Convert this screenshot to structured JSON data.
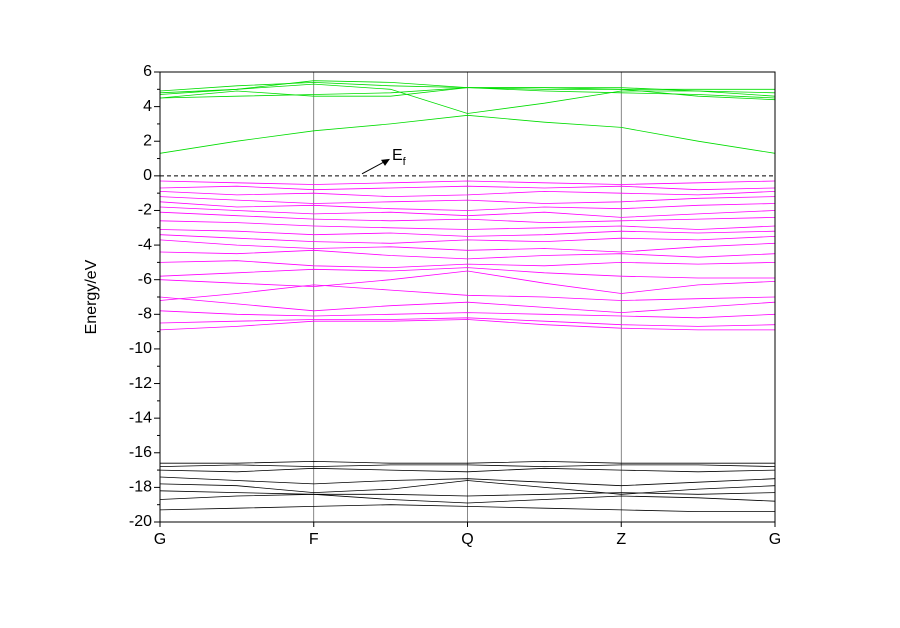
{
  "chart_data": {
    "type": "line",
    "ylabel": "Energy/eV",
    "x": [
      0,
      0.5,
      1,
      1.5,
      2,
      2.5,
      3,
      3.5,
      4
    ],
    "xlim": [
      0,
      4
    ],
    "xticks": [
      {
        "value": 0,
        "label": "G"
      },
      {
        "value": 1,
        "label": "F"
      },
      {
        "value": 2,
        "label": "Q"
      },
      {
        "value": 3,
        "label": "Z"
      },
      {
        "value": 4,
        "label": "G"
      }
    ],
    "ylim": [
      -20,
      6
    ],
    "yticks": [
      -20,
      -18,
      -16,
      -14,
      -12,
      -10,
      -8,
      -6,
      -4,
      -2,
      0,
      2,
      4,
      6
    ],
    "grid": true,
    "fermi_level": 0,
    "annotation": {
      "text": "E",
      "subscript": "f"
    },
    "series": [
      {
        "color": "#00dd00",
        "values": [
          1.3,
          2.0,
          2.6,
          3.0,
          3.5,
          3.1,
          2.8,
          2.0,
          1.3
        ]
      },
      {
        "color": "#00dd00",
        "values": [
          4.5,
          4.6,
          4.7,
          4.8,
          5.1,
          4.9,
          4.8,
          4.7,
          4.5
        ]
      },
      {
        "color": "#00dd00",
        "values": [
          4.7,
          5.0,
          5.3,
          5.0,
          3.6,
          4.2,
          4.9,
          4.9,
          4.8
        ]
      },
      {
        "color": "#00dd00",
        "values": [
          4.8,
          5.0,
          5.5,
          5.4,
          5.1,
          5.1,
          5.0,
          4.6,
          4.4
        ]
      },
      {
        "color": "#00dd00",
        "values": [
          4.9,
          5.2,
          5.4,
          5.2,
          5.1,
          5.0,
          5.0,
          5.0,
          5.0
        ]
      },
      {
        "color": "#00dd00",
        "values": [
          4.5,
          4.9,
          4.6,
          4.6,
          5.1,
          5.1,
          5.1,
          4.9,
          4.6
        ]
      },
      {
        "color": "#ff00ff",
        "values": [
          -0.3,
          -0.4,
          -0.5,
          -0.4,
          -0.3,
          -0.4,
          -0.5,
          -0.4,
          -0.3
        ]
      },
      {
        "color": "#ff00ff",
        "values": [
          -0.7,
          -0.6,
          -0.8,
          -0.7,
          -0.6,
          -0.7,
          -0.6,
          -0.8,
          -0.7
        ]
      },
      {
        "color": "#ff00ff",
        "values": [
          -0.9,
          -1.1,
          -1.0,
          -1.2,
          -1.1,
          -0.9,
          -1.0,
          -1.1,
          -0.9
        ]
      },
      {
        "color": "#ff00ff",
        "values": [
          -1.2,
          -1.4,
          -1.6,
          -1.5,
          -1.4,
          -1.6,
          -1.5,
          -1.3,
          -1.2
        ]
      },
      {
        "color": "#ff00ff",
        "values": [
          -1.5,
          -1.8,
          -1.7,
          -1.9,
          -2.0,
          -1.8,
          -1.9,
          -1.7,
          -1.6
        ]
      },
      {
        "color": "#ff00ff",
        "values": [
          -1.8,
          -2.0,
          -2.2,
          -2.1,
          -2.3,
          -2.1,
          -2.4,
          -2.2,
          -2.0
        ]
      },
      {
        "color": "#ff00ff",
        "values": [
          -2.1,
          -2.3,
          -2.5,
          -2.6,
          -2.5,
          -2.7,
          -2.6,
          -2.5,
          -2.4
        ]
      },
      {
        "color": "#ff00ff",
        "values": [
          -2.6,
          -2.7,
          -2.9,
          -3.0,
          -3.1,
          -3.0,
          -2.9,
          -3.1,
          -2.9
        ]
      },
      {
        "color": "#ff00ff",
        "values": [
          -3.1,
          -3.2,
          -3.4,
          -3.3,
          -3.5,
          -3.4,
          -3.2,
          -3.3,
          -3.2
        ]
      },
      {
        "color": "#ff00ff",
        "values": [
          -3.4,
          -3.6,
          -3.8,
          -3.9,
          -3.7,
          -3.8,
          -3.6,
          -3.7,
          -3.5
        ]
      },
      {
        "color": "#ff00ff",
        "values": [
          -3.7,
          -4.0,
          -4.2,
          -4.1,
          -4.3,
          -4.2,
          -4.4,
          -4.1,
          -3.9
        ]
      },
      {
        "color": "#ff00ff",
        "values": [
          -4.4,
          -4.5,
          -4.3,
          -4.6,
          -4.8,
          -4.6,
          -4.5,
          -4.7,
          -4.5
        ]
      },
      {
        "color": "#ff00ff",
        "values": [
          -5.0,
          -4.9,
          -5.2,
          -5.3,
          -5.1,
          -5.2,
          -5.0,
          -5.1,
          -5.0
        ]
      },
      {
        "color": "#ff00ff",
        "values": [
          -5.8,
          -5.6,
          -5.4,
          -5.5,
          -5.3,
          -5.6,
          -5.8,
          -5.9,
          -5.9
        ]
      },
      {
        "color": "#ff00ff",
        "values": [
          -6.0,
          -6.2,
          -6.4,
          -6.0,
          -5.5,
          -6.2,
          -6.8,
          -6.3,
          -6.1
        ]
      },
      {
        "color": "#ff00ff",
        "values": [
          -7.2,
          -6.8,
          -6.3,
          -6.6,
          -6.9,
          -7.0,
          -7.2,
          -7.1,
          -7.0
        ]
      },
      {
        "color": "#ff00ff",
        "values": [
          -7.0,
          -7.4,
          -7.8,
          -7.5,
          -7.3,
          -7.6,
          -7.9,
          -7.6,
          -7.3
        ]
      },
      {
        "color": "#ff00ff",
        "values": [
          -7.8,
          -8.0,
          -8.1,
          -8.0,
          -7.9,
          -8.0,
          -8.1,
          -8.2,
          -8.0
        ]
      },
      {
        "color": "#ff00ff",
        "values": [
          -8.5,
          -8.4,
          -8.3,
          -8.3,
          -8.2,
          -8.4,
          -8.6,
          -8.7,
          -8.6
        ]
      },
      {
        "color": "#ff00ff",
        "values": [
          -8.9,
          -8.7,
          -8.4,
          -8.4,
          -8.3,
          -8.6,
          -8.8,
          -8.9,
          -8.9
        ]
      },
      {
        "color": "#000000",
        "values": [
          -16.6,
          -16.6,
          -16.5,
          -16.6,
          -16.6,
          -16.5,
          -16.6,
          -16.6,
          -16.6
        ]
      },
      {
        "color": "#000000",
        "values": [
          -16.8,
          -16.7,
          -16.8,
          -16.7,
          -16.7,
          -16.8,
          -16.7,
          -16.7,
          -16.8
        ]
      },
      {
        "color": "#000000",
        "values": [
          -17.0,
          -17.1,
          -16.9,
          -17.0,
          -17.1,
          -16.9,
          -17.0,
          -17.1,
          -17.0
        ]
      },
      {
        "color": "#000000",
        "values": [
          -17.4,
          -17.6,
          -17.8,
          -17.6,
          -17.5,
          -17.7,
          -17.9,
          -17.7,
          -17.5
        ]
      },
      {
        "color": "#000000",
        "values": [
          -17.8,
          -17.9,
          -18.3,
          -18.1,
          -17.6,
          -18.0,
          -18.4,
          -18.1,
          -17.9
        ]
      },
      {
        "color": "#000000",
        "values": [
          -18.2,
          -18.3,
          -18.4,
          -18.4,
          -18.5,
          -18.4,
          -18.3,
          -18.4,
          -18.3
        ]
      },
      {
        "color": "#000000",
        "values": [
          -18.7,
          -18.5,
          -18.4,
          -18.7,
          -18.9,
          -18.7,
          -18.5,
          -18.6,
          -18.8
        ]
      },
      {
        "color": "#000000",
        "values": [
          -19.3,
          -19.2,
          -19.1,
          -19.0,
          -19.1,
          -19.2,
          -19.3,
          -19.4,
          -19.4
        ]
      }
    ]
  }
}
